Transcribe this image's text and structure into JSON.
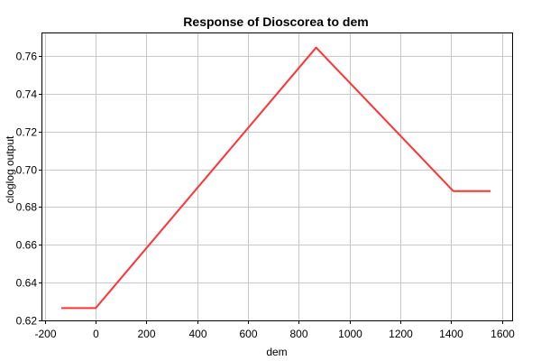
{
  "chart_data": {
    "type": "line",
    "title": "Response of Dioscorea to dem",
    "xlabel": "dem",
    "ylabel": "cloglog output",
    "xlim": [
      -210,
      1640
    ],
    "ylim": [
      0.62,
      0.772
    ],
    "xticks": [
      -200,
      0,
      200,
      400,
      600,
      800,
      1000,
      1200,
      1400,
      1600
    ],
    "xtick_labels": [
      "-200",
      "0",
      "200",
      "400",
      "600",
      "800",
      "1000",
      "1200",
      "1400",
      "1600"
    ],
    "yticks": [
      0.62,
      0.64,
      0.66,
      0.68,
      0.7,
      0.72,
      0.74,
      0.76
    ],
    "ytick_labels": [
      "0.62",
      "0.64",
      "0.66",
      "0.68",
      "0.70",
      "0.72",
      "0.74",
      "0.76"
    ],
    "grid": true,
    "series": [
      {
        "color": "#ff3333",
        "x": [
          -135,
          0,
          868,
          1408,
          1555
        ],
        "y": [
          0.6265,
          0.6265,
          0.7645,
          0.6885,
          0.6885
        ]
      }
    ]
  }
}
